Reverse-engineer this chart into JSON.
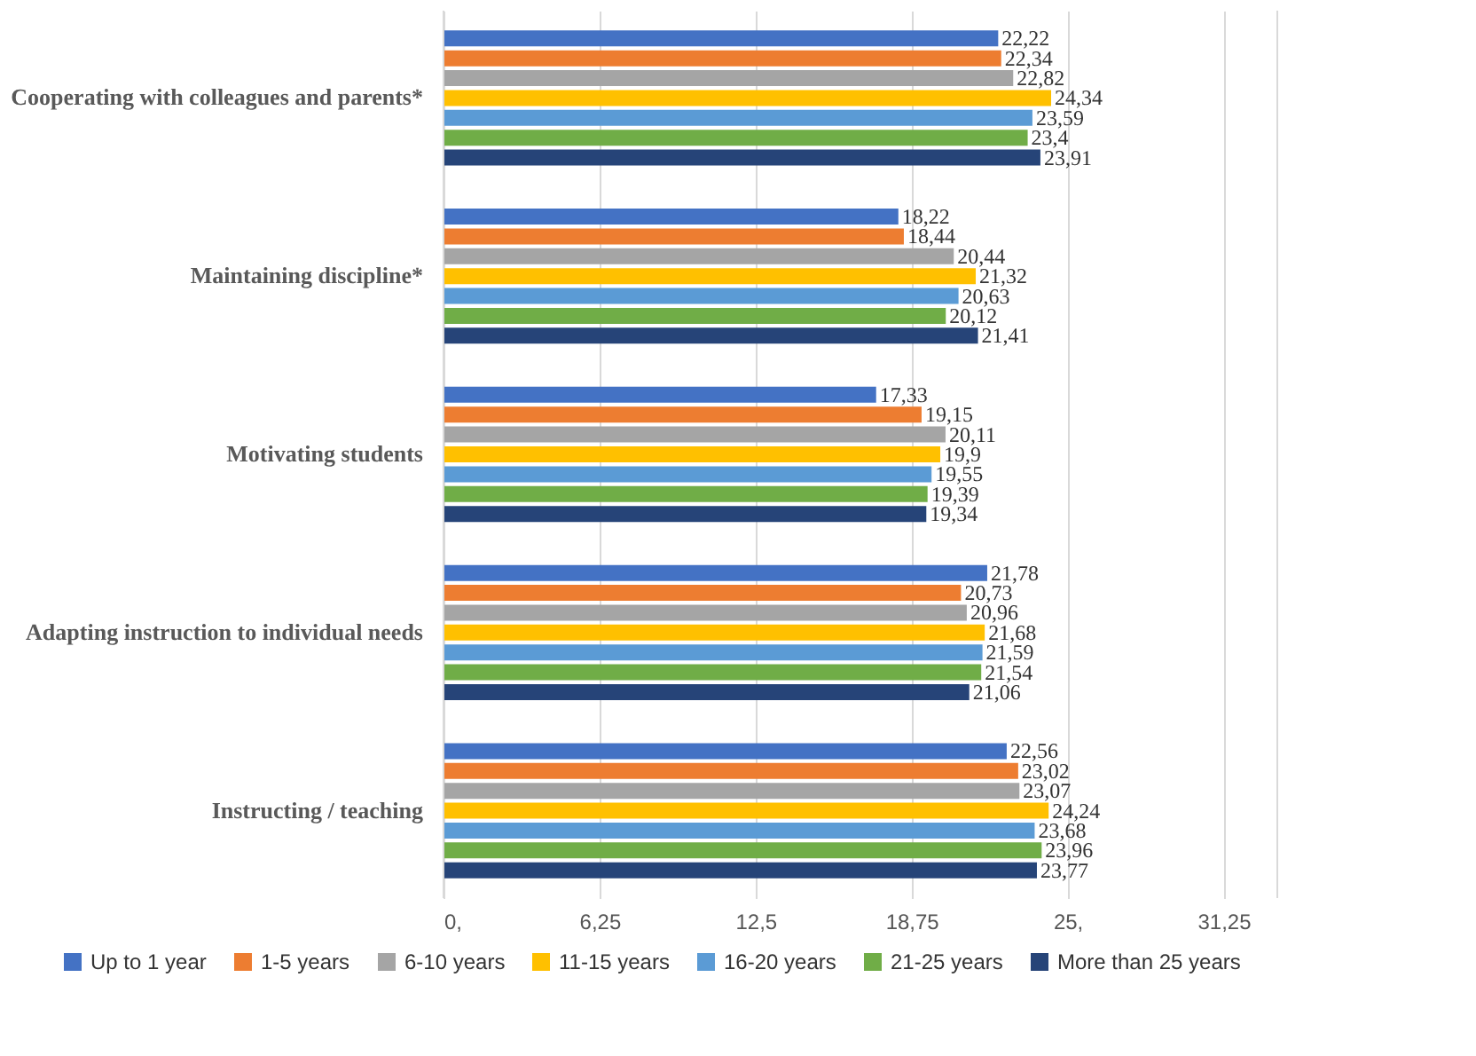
{
  "chart_data": {
    "type": "bar",
    "orientation": "horizontal",
    "categories": [
      "Cooperating with colleagues and parents*",
      "Maintaining discipline*",
      "Motivating students",
      "Adapting instruction to individual needs",
      "Instructing / teaching"
    ],
    "series": [
      {
        "name": "Up to 1 year",
        "color": "#4472c4",
        "values": [
          22.22,
          18.22,
          17.33,
          21.78,
          22.56
        ],
        "value_labels": [
          "22,22",
          "18,22",
          "17,33",
          "21,78",
          "22,56"
        ]
      },
      {
        "name": "1-5 years",
        "color": "#ed7d31",
        "values": [
          22.34,
          18.44,
          19.15,
          20.73,
          23.02
        ],
        "value_labels": [
          "22,34",
          "18,44",
          "19,15",
          "20,73",
          "23,02"
        ]
      },
      {
        "name": "6-10 years",
        "color": "#a5a5a5",
        "values": [
          22.82,
          20.44,
          20.11,
          20.96,
          23.07
        ],
        "value_labels": [
          "22,82",
          "20,44",
          "20,11",
          "20,96",
          "23,07"
        ]
      },
      {
        "name": "11-15 years",
        "color": "#ffc000",
        "values": [
          24.34,
          21.32,
          19.9,
          21.68,
          24.24
        ],
        "value_labels": [
          "24,34",
          "21,32",
          "19,9",
          "21,68",
          "24,24"
        ]
      },
      {
        "name": "16-20 years",
        "color": "#5b9bd5",
        "values": [
          23.59,
          20.63,
          19.55,
          21.59,
          23.68
        ],
        "value_labels": [
          "23,59",
          "20,63",
          "19,55",
          "21,59",
          "23,68"
        ]
      },
      {
        "name": "21-25 years",
        "color": "#70ad47",
        "values": [
          23.4,
          20.12,
          19.39,
          21.54,
          23.96
        ],
        "value_labels": [
          "23,4",
          "20,12",
          "19,39",
          "21,54",
          "23,96"
        ]
      },
      {
        "name": "More than 25 years",
        "color": "#264478",
        "values": [
          23.91,
          21.41,
          19.34,
          21.06,
          23.77
        ],
        "value_labels": [
          "23,91",
          "21,41",
          "19,34",
          "21,06",
          "23,77"
        ]
      }
    ],
    "xlim": [
      0,
      33.4
    ],
    "xticks": [
      {
        "value": 0,
        "label": "0,"
      },
      {
        "value": 6.25,
        "label": "6,25"
      },
      {
        "value": 12.5,
        "label": "12,5"
      },
      {
        "value": 18.75,
        "label": "18,75"
      },
      {
        "value": 25,
        "label": "25,"
      },
      {
        "value": 31.25,
        "label": "31,25"
      }
    ],
    "grid": "x",
    "legend": "bottom"
  }
}
